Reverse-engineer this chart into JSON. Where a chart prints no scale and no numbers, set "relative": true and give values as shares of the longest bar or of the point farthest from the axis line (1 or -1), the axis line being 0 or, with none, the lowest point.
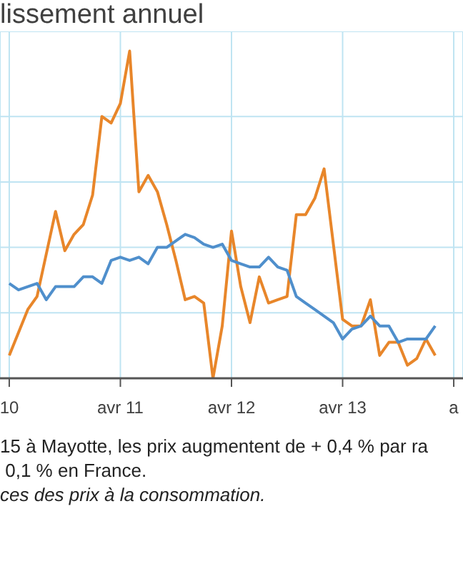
{
  "chart_data": {
    "type": "line",
    "title": "lissement annuel",
    "relative": true,
    "grid": true,
    "line_style": "solid",
    "marker": "none",
    "xlim": [
      "2010-03",
      "2014-05"
    ],
    "xticks": [
      {
        "value": "2010-04",
        "label": "10"
      },
      {
        "value": "2011-04",
        "label": "avr 11"
      },
      {
        "value": "2012-04",
        "label": "avr 12"
      },
      {
        "value": "2013-04",
        "label": "avr 13"
      },
      {
        "value": "2014-04",
        "label": "a"
      }
    ],
    "series": [
      {
        "color": "#e8862a",
        "x": [
          "2010-04",
          "2010-06",
          "2010-07",
          "2010-09",
          "2010-10",
          "2010-11",
          "2010-12",
          "2011-01",
          "2011-02",
          "2011-03",
          "2011-04",
          "2011-05",
          "2011-06",
          "2011-07",
          "2011-08",
          "2011-09",
          "2011-10",
          "2011-11",
          "2011-12",
          "2012-01",
          "2012-02",
          "2012-03",
          "2012-04",
          "2012-05",
          "2012-06",
          "2012-07",
          "2012-08",
          "2012-09",
          "2012-10",
          "2012-11",
          "2012-12",
          "2013-01",
          "2013-02",
          "2013-04",
          "2013-05",
          "2013-06",
          "2013-07",
          "2013-08",
          "2013-09",
          "2013-10",
          "2013-11",
          "2013-12",
          "2014-01",
          "2014-02"
        ],
        "values": [
          0.07,
          0.21,
          0.25,
          0.51,
          0.39,
          0.44,
          0.47,
          0.56,
          0.8,
          0.78,
          0.84,
          1,
          0.57,
          0.62,
          0.57,
          0.47,
          0.36,
          0.24,
          0.25,
          0.23,
          0,
          0.16,
          0.45,
          0.28,
          0.17,
          0.31,
          0.23,
          0.24,
          0.25,
          0.5,
          0.5,
          0.55,
          0.64,
          0.18,
          0.16,
          0.16,
          0.24,
          0.07,
          0.11,
          0.11,
          0.04,
          0.06,
          0.12,
          0.07
        ]
      },
      {
        "color": "#4f8fcc",
        "x": [
          "2010-04",
          "2010-05",
          "2010-07",
          "2010-08",
          "2010-09",
          "2010-11",
          "2010-12",
          "2011-01",
          "2011-02",
          "2011-03",
          "2011-04",
          "2011-05",
          "2011-06",
          "2011-07",
          "2011-08",
          "2011-09",
          "2011-11",
          "2011-12",
          "2012-01",
          "2012-02",
          "2012-03",
          "2012-04",
          "2012-05",
          "2012-06",
          "2012-07",
          "2012-08",
          "2012-09",
          "2012-10",
          "2012-11",
          "2012-12",
          "2013-01",
          "2013-02",
          "2013-03",
          "2013-04",
          "2013-05",
          "2013-06",
          "2013-07",
          "2013-08",
          "2013-09",
          "2013-10",
          "2013-11",
          "2014-01",
          "2014-02"
        ],
        "values": [
          0.29,
          0.27,
          0.29,
          0.24,
          0.28,
          0.28,
          0.31,
          0.31,
          0.29,
          0.36,
          0.37,
          0.36,
          0.37,
          0.35,
          0.4,
          0.4,
          0.44,
          0.43,
          0.41,
          0.4,
          0.41,
          0.36,
          0.35,
          0.34,
          0.34,
          0.37,
          0.34,
          0.33,
          0.25,
          0.23,
          0.21,
          0.19,
          0.17,
          0.12,
          0.15,
          0.16,
          0.19,
          0.16,
          0.16,
          0.11,
          0.12,
          0.12,
          0.16
        ]
      }
    ],
    "annotations": [
      "15 à Mayotte, les prix augmentent de + 0,4 % par ra",
      " 0,1 % en France.",
      "ces des prix à la consommation."
    ]
  }
}
